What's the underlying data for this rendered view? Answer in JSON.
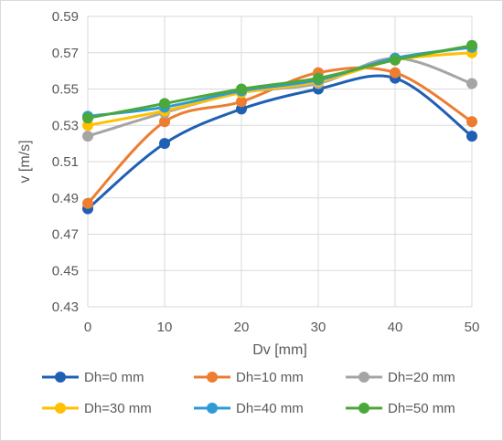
{
  "chart_data": {
    "type": "line",
    "title": "",
    "xlabel": "Dv [mm]",
    "ylabel": "v [m/s]",
    "x": [
      0,
      10,
      20,
      30,
      40,
      50
    ],
    "xlim": [
      0,
      50
    ],
    "ylim": [
      0.43,
      0.59
    ],
    "x_ticks": [
      "0",
      "10",
      "20",
      "30",
      "40",
      "50"
    ],
    "y_ticks": [
      "0.43",
      "0.45",
      "0.47",
      "0.49",
      "0.51",
      "0.53",
      "0.55",
      "0.57",
      "0.59"
    ],
    "grid": true,
    "smooth": true,
    "legend_position": "bottom",
    "series": [
      {
        "name": "Dh=0 mm",
        "color": "#1f5fb4",
        "values": [
          0.484,
          0.52,
          0.539,
          0.55,
          0.556,
          0.524
        ]
      },
      {
        "name": "Dh=10 mm",
        "color": "#ed7d31",
        "values": [
          0.487,
          0.532,
          0.543,
          0.559,
          0.559,
          0.532
        ]
      },
      {
        "name": "Dh=20 mm",
        "color": "#a5a5a5",
        "values": [
          0.524,
          0.537,
          0.548,
          0.553,
          0.567,
          0.553
        ]
      },
      {
        "name": "Dh=30 mm",
        "color": "#ffc000",
        "values": [
          0.53,
          0.538,
          0.548,
          0.554,
          0.566,
          0.57
        ]
      },
      {
        "name": "Dh=40 mm",
        "color": "#2e9bd6",
        "values": [
          0.535,
          0.54,
          0.549,
          0.555,
          0.567,
          0.573
        ]
      },
      {
        "name": "Dh=50 mm",
        "color": "#4ba83a",
        "values": [
          0.534,
          0.542,
          0.55,
          0.556,
          0.566,
          0.574
        ]
      }
    ]
  }
}
